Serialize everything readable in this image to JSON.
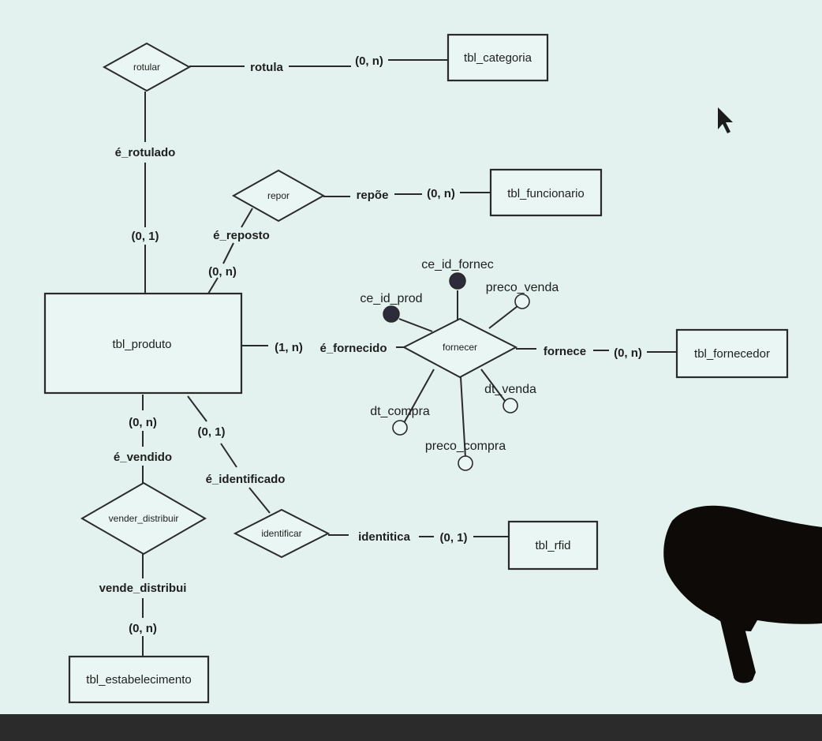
{
  "entities": {
    "categoria": "tbl_categoria",
    "funcionario": "tbl_funcionario",
    "produto": "tbl_produto",
    "fornecedor": "tbl_fornecedor",
    "rfid": "tbl_rfid",
    "estabelecimento": "tbl_estabelecimento"
  },
  "relationships": {
    "rotular": "rotular",
    "repor": "repor",
    "fornecer": "fornecer",
    "vender_distribuir": "vender_distribuir",
    "identificar": "identificar"
  },
  "roles": {
    "rotula": "rotula",
    "e_rotulado": "é_rotulado",
    "repoe": "repõe",
    "e_reposto": "é_reposto",
    "e_fornecido": "é_fornecido",
    "fornece": "fornece",
    "e_vendido": "é_vendido",
    "vende_distribui": "vende_distribui",
    "e_identificado": "é_identificado",
    "identitica": "identitica"
  },
  "cardinalities": {
    "categoria": "(0, n)",
    "produto_rotulado": "(0, 1)",
    "funcionario": "(0, n)",
    "produto_reposto": "(0, n)",
    "produto_fornecido": "(1, n)",
    "fornecedor": "(0, n)",
    "produto_vendido": "(0, n)",
    "estabelecimento": "(0, n)",
    "produto_identificado": "(0, 1)",
    "rfid": "(0, 1)"
  },
  "attributes": {
    "ce_id_fornec": "ce_id_fornec",
    "ce_id_prod": "ce_id_prod",
    "preco_venda": "preco_venda",
    "dt_venda": "dt_venda",
    "dt_compra": "dt_compra",
    "preco_compra": "preco_compra"
  }
}
